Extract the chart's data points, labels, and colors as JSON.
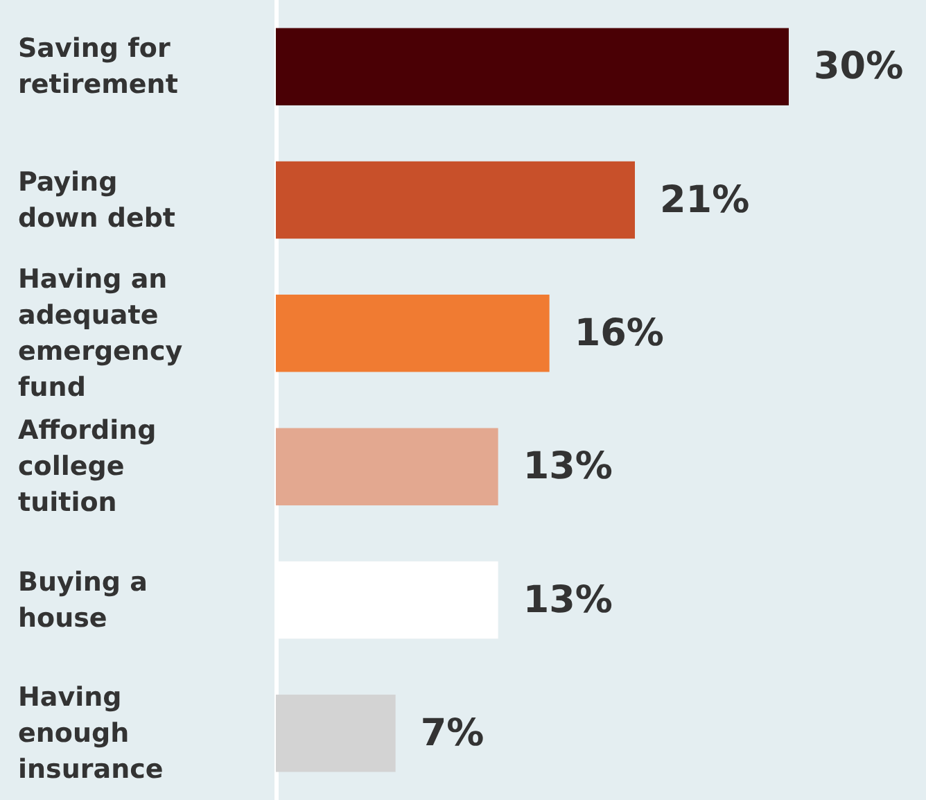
{
  "chart_data": {
    "type": "bar",
    "orientation": "horizontal",
    "categories": [
      "Saving for retirement",
      "Paying down debt",
      "Having an adequate emergency fund",
      "Affording college tuition",
      "Buying a house",
      "Having enough insurance"
    ],
    "values": [
      30,
      21,
      16,
      13,
      13,
      7
    ],
    "colors": [
      "#4a0005",
      "#c8502a",
      "#f07b32",
      "#e3a890",
      "#ffffff",
      "#d3d3d3"
    ],
    "value_labels": [
      "30%",
      "21%",
      "16%",
      "13%",
      "13%",
      "7%"
    ]
  }
}
